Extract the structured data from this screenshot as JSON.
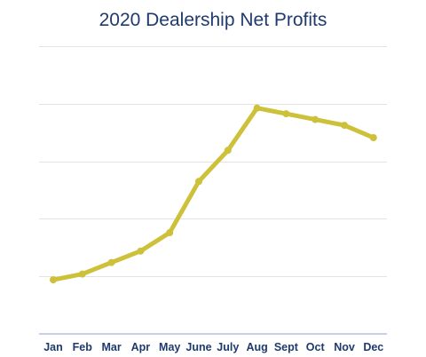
{
  "chart_data": {
    "type": "line",
    "title": "2020 Dealership Net Profits",
    "categories": [
      "Jan",
      "Feb",
      "Mar",
      "Apr",
      "May",
      "June",
      "July",
      "Aug",
      "Sept",
      "Oct",
      "Nov",
      "Dec"
    ],
    "series": [
      {
        "values": [
          1.88,
          2.08,
          2.48,
          2.88,
          3.52,
          5.3,
          6.38,
          7.85,
          7.65,
          7.45,
          7.25,
          6.82
        ],
        "color": "#cdc13a"
      }
    ],
    "ylim": [
      0,
      10
    ],
    "grid": true,
    "legend": "none"
  }
}
